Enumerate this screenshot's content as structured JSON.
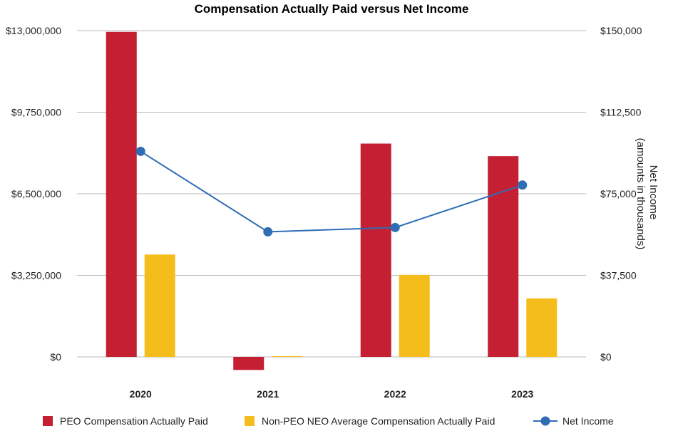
{
  "chart_data": {
    "type": "bar",
    "title": "Compensation Actually Paid versus Net Income",
    "categories": [
      "2020",
      "2021",
      "2022",
      "2023"
    ],
    "series": [
      {
        "name": "PEO Compensation Actually Paid",
        "type": "bar",
        "axis": "left",
        "color": "#c41f33",
        "values": [
          12950000,
          -520000,
          8500000,
          8000000
        ]
      },
      {
        "name": "Non-PEO NEO Average Compensation Actually Paid",
        "type": "bar",
        "axis": "left",
        "color": "#f5bd1c",
        "values": [
          4080000,
          30000,
          3270000,
          2330000
        ]
      },
      {
        "name": "Net Income",
        "type": "line",
        "axis": "right",
        "color": "#2f6db5",
        "values": [
          94500,
          57500,
          59500,
          79000
        ]
      }
    ],
    "y_left": {
      "ylim": [
        0,
        13000000
      ],
      "ticks": [
        0,
        3250000,
        6500000,
        9750000,
        13000000
      ],
      "tick_labels": [
        "$0",
        "$3,250,000",
        "$6,500,000",
        "$9,750,000",
        "$13,000,000"
      ]
    },
    "y_right": {
      "label_line1": "Net Income",
      "label_line2": "(amounts in thousands)",
      "ylim": [
        0,
        150000
      ],
      "ticks": [
        0,
        37500,
        75000,
        112500,
        150000
      ],
      "tick_labels": [
        "$0",
        "$37,500",
        "$75,000",
        "$112,500",
        "$150,000"
      ]
    },
    "grid": true,
    "legend_position": "bottom"
  }
}
